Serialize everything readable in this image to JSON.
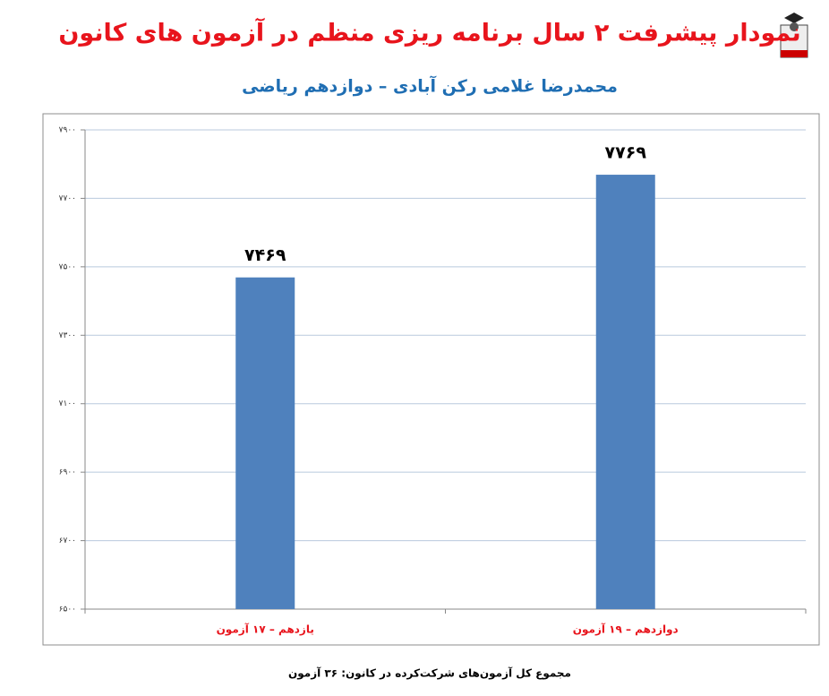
{
  "chart_data": {
    "type": "bar",
    "title": "نمودار پیشرفت ۲ سال برنامه ریزی منظم در آزمون های کانون",
    "subtitle": "محمدرضا غلامی رکن آبادی – دوازدهم ریاضی",
    "categories": [
      "یازدهم – ۱۷ آزمون",
      "دوازدهم – ۱۹ آزمون"
    ],
    "values": [
      7469,
      7769
    ],
    "value_labels": [
      "۷۴۶۹",
      "۷۷۶۹"
    ],
    "color": "#4f81bd",
    "ylim": [
      6500,
      7900
    ],
    "yticks": [
      {
        "value": 6500,
        "label": "۶۵۰۰"
      },
      {
        "value": 6700,
        "label": "۶۷۰۰"
      },
      {
        "value": 6900,
        "label": "۶۹۰۰"
      },
      {
        "value": 7100,
        "label": "۷۱۰۰"
      },
      {
        "value": 7300,
        "label": "۷۳۰۰"
      },
      {
        "value": 7500,
        "label": "۷۵۰۰"
      },
      {
        "value": 7700,
        "label": "۷۷۰۰"
      },
      {
        "value": 7900,
        "label": "۷۹۰۰"
      }
    ],
    "grid": true,
    "footnote": "مجموع کل آزمون‌های شرکت‌کرده در کانون: ۳۶ آزمون"
  }
}
